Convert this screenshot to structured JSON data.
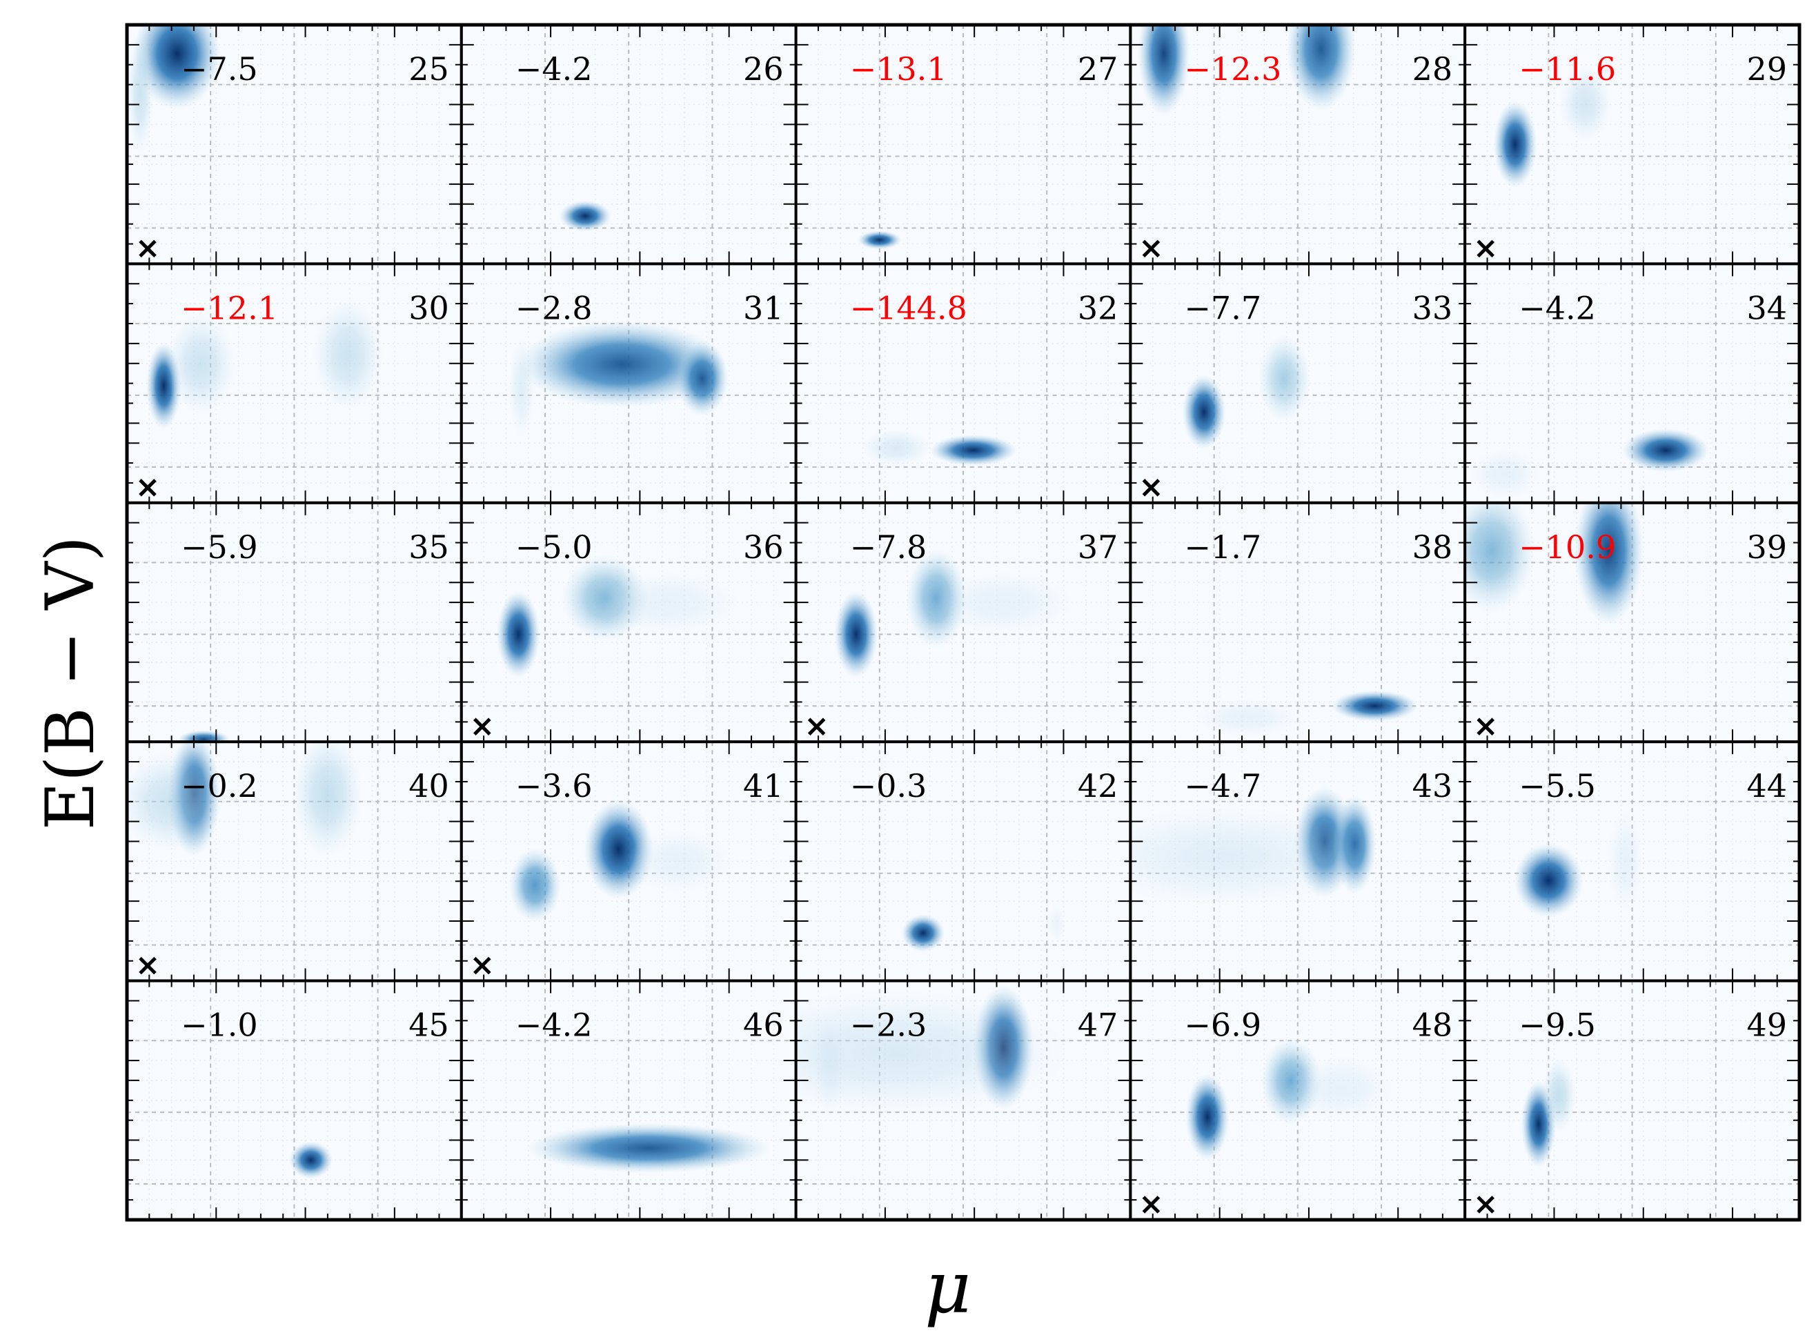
{
  "chart_data": {
    "type": "heatmap",
    "title": "",
    "xlabel": "μ",
    "ylabel": "E(B − V)",
    "grid": true,
    "layout_grid": {
      "rows": 5,
      "cols": 5
    },
    "colormap": "Blues",
    "highlight_color": "#ff0000",
    "text_color": "#000000",
    "panels": [
      {
        "id": "25",
        "value": "−7.5",
        "highlight": false,
        "marker": true,
        "blobs": [
          {
            "x": 0.15,
            "y": 0.88,
            "sx": 0.05,
            "sy": 0.09,
            "w": 1.0
          },
          {
            "x": 0.04,
            "y": 0.72,
            "sx": 0.015,
            "sy": 0.1,
            "w": 0.3
          }
        ]
      },
      {
        "id": "26",
        "value": "−4.2",
        "highlight": false,
        "marker": false,
        "blobs": [
          {
            "x": 0.37,
            "y": 0.2,
            "sx": 0.03,
            "sy": 0.025,
            "w": 1.0
          }
        ]
      },
      {
        "id": "27",
        "value": "−13.1",
        "highlight": true,
        "marker": false,
        "blobs": [
          {
            "x": 0.25,
            "y": 0.1,
            "sx": 0.025,
            "sy": 0.015,
            "w": 1.0
          }
        ]
      },
      {
        "id": "28",
        "value": "−12.3",
        "highlight": true,
        "marker": true,
        "blobs": [
          {
            "x": 0.1,
            "y": 0.88,
            "sx": 0.03,
            "sy": 0.1,
            "w": 0.95
          },
          {
            "x": 0.57,
            "y": 0.9,
            "sx": 0.04,
            "sy": 0.1,
            "w": 0.9
          }
        ]
      },
      {
        "id": "29",
        "value": "−11.6",
        "highlight": true,
        "marker": true,
        "blobs": [
          {
            "x": 0.15,
            "y": 0.5,
            "sx": 0.025,
            "sy": 0.07,
            "w": 1.0
          },
          {
            "x": 0.36,
            "y": 0.67,
            "sx": 0.03,
            "sy": 0.06,
            "w": 0.25
          }
        ]
      },
      {
        "id": "30",
        "value": "−12.1",
        "highlight": true,
        "marker": true,
        "blobs": [
          {
            "x": 0.11,
            "y": 0.49,
            "sx": 0.02,
            "sy": 0.07,
            "w": 1.0
          },
          {
            "x": 0.22,
            "y": 0.58,
            "sx": 0.04,
            "sy": 0.08,
            "w": 0.3
          },
          {
            "x": 0.66,
            "y": 0.62,
            "sx": 0.04,
            "sy": 0.09,
            "w": 0.28
          }
        ]
      },
      {
        "id": "31",
        "value": "−2.8",
        "highlight": false,
        "marker": false,
        "blobs": [
          {
            "x": 0.48,
            "y": 0.58,
            "sx": 0.12,
            "sy": 0.07,
            "w": 0.9
          },
          {
            "x": 0.72,
            "y": 0.52,
            "sx": 0.03,
            "sy": 0.06,
            "w": 0.9
          },
          {
            "x": 0.18,
            "y": 0.48,
            "sx": 0.015,
            "sy": 0.08,
            "w": 0.15
          }
        ]
      },
      {
        "id": "32",
        "value": "−144.8",
        "highlight": true,
        "marker": false,
        "blobs": [
          {
            "x": 0.53,
            "y": 0.22,
            "sx": 0.05,
            "sy": 0.025,
            "w": 1.0
          },
          {
            "x": 0.3,
            "y": 0.23,
            "sx": 0.04,
            "sy": 0.03,
            "w": 0.2
          }
        ]
      },
      {
        "id": "33",
        "value": "−7.7",
        "highlight": false,
        "marker": true,
        "blobs": [
          {
            "x": 0.22,
            "y": 0.38,
            "sx": 0.025,
            "sy": 0.06,
            "w": 1.0
          },
          {
            "x": 0.46,
            "y": 0.52,
            "sx": 0.03,
            "sy": 0.07,
            "w": 0.45
          }
        ]
      },
      {
        "id": "34",
        "value": "−4.2",
        "highlight": false,
        "marker": false,
        "blobs": [
          {
            "x": 0.6,
            "y": 0.22,
            "sx": 0.05,
            "sy": 0.035,
            "w": 1.0
          },
          {
            "x": 0.12,
            "y": 0.12,
            "sx": 0.04,
            "sy": 0.04,
            "w": 0.08
          }
        ]
      },
      {
        "id": "35",
        "value": "−5.9",
        "highlight": false,
        "marker": false,
        "blobs": [
          {
            "x": 0.23,
            "y": 0.01,
            "sx": 0.03,
            "sy": 0.015,
            "w": 0.95
          }
        ]
      },
      {
        "id": "36",
        "value": "−5.0",
        "highlight": false,
        "marker": true,
        "blobs": [
          {
            "x": 0.17,
            "y": 0.45,
            "sx": 0.025,
            "sy": 0.07,
            "w": 1.0
          },
          {
            "x": 0.43,
            "y": 0.6,
            "sx": 0.05,
            "sy": 0.07,
            "w": 0.55
          },
          {
            "x": 0.62,
            "y": 0.58,
            "sx": 0.08,
            "sy": 0.05,
            "w": 0.1
          }
        ]
      },
      {
        "id": "37",
        "value": "−7.8",
        "highlight": false,
        "marker": true,
        "blobs": [
          {
            "x": 0.18,
            "y": 0.45,
            "sx": 0.025,
            "sy": 0.07,
            "w": 1.0
          },
          {
            "x": 0.42,
            "y": 0.6,
            "sx": 0.035,
            "sy": 0.08,
            "w": 0.6
          },
          {
            "x": 0.62,
            "y": 0.58,
            "sx": 0.08,
            "sy": 0.05,
            "w": 0.1
          }
        ]
      },
      {
        "id": "38",
        "value": "−1.7",
        "highlight": false,
        "marker": false,
        "blobs": [
          {
            "x": 0.73,
            "y": 0.15,
            "sx": 0.05,
            "sy": 0.025,
            "w": 1.0
          },
          {
            "x": 0.35,
            "y": 0.1,
            "sx": 0.06,
            "sy": 0.03,
            "w": 0.12
          }
        ]
      },
      {
        "id": "39",
        "value": "−10.9",
        "highlight": true,
        "marker": true,
        "blobs": [
          {
            "x": 0.43,
            "y": 0.8,
            "sx": 0.04,
            "sy": 0.12,
            "w": 0.95
          },
          {
            "x": 0.08,
            "y": 0.8,
            "sx": 0.05,
            "sy": 0.1,
            "w": 0.55
          }
        ]
      },
      {
        "id": "40",
        "value": "−0.2",
        "highlight": false,
        "marker": true,
        "blobs": [
          {
            "x": 0.2,
            "y": 0.78,
            "sx": 0.03,
            "sy": 0.1,
            "w": 0.95
          },
          {
            "x": 0.13,
            "y": 0.75,
            "sx": 0.06,
            "sy": 0.08,
            "w": 0.3
          },
          {
            "x": 0.6,
            "y": 0.78,
            "sx": 0.04,
            "sy": 0.1,
            "w": 0.35
          }
        ]
      },
      {
        "id": "41",
        "value": "−3.6",
        "highlight": false,
        "marker": true,
        "blobs": [
          {
            "x": 0.47,
            "y": 0.55,
            "sx": 0.04,
            "sy": 0.08,
            "w": 1.0
          },
          {
            "x": 0.22,
            "y": 0.4,
            "sx": 0.03,
            "sy": 0.06,
            "w": 0.7
          },
          {
            "x": 0.65,
            "y": 0.5,
            "sx": 0.06,
            "sy": 0.05,
            "w": 0.08
          }
        ]
      },
      {
        "id": "42",
        "value": "−0.3",
        "highlight": false,
        "marker": false,
        "blobs": [
          {
            "x": 0.38,
            "y": 0.2,
            "sx": 0.025,
            "sy": 0.03,
            "w": 1.0
          },
          {
            "x": 0.78,
            "y": 0.24,
            "sx": 0.01,
            "sy": 0.03,
            "w": 0.06
          }
        ]
      },
      {
        "id": "43",
        "value": "−4.7",
        "highlight": false,
        "marker": false,
        "blobs": [
          {
            "x": 0.58,
            "y": 0.58,
            "sx": 0.035,
            "sy": 0.09,
            "w": 0.9
          },
          {
            "x": 0.67,
            "y": 0.57,
            "sx": 0.025,
            "sy": 0.08,
            "w": 0.85
          },
          {
            "x": 0.28,
            "y": 0.52,
            "sx": 0.16,
            "sy": 0.08,
            "w": 0.15
          }
        ]
      },
      {
        "id": "44",
        "value": "−5.5",
        "highlight": false,
        "marker": false,
        "blobs": [
          {
            "x": 0.25,
            "y": 0.42,
            "sx": 0.04,
            "sy": 0.06,
            "w": 1.0
          },
          {
            "x": 0.48,
            "y": 0.5,
            "sx": 0.02,
            "sy": 0.08,
            "w": 0.1
          }
        ]
      },
      {
        "id": "45",
        "value": "−1.0",
        "highlight": false,
        "marker": false,
        "blobs": [
          {
            "x": 0.55,
            "y": 0.25,
            "sx": 0.025,
            "sy": 0.03,
            "w": 1.0
          }
        ]
      },
      {
        "id": "46",
        "value": "−4.2",
        "highlight": false,
        "marker": false,
        "blobs": [
          {
            "x": 0.56,
            "y": 0.3,
            "sx": 0.14,
            "sy": 0.04,
            "w": 0.9
          }
        ]
      },
      {
        "id": "47",
        "value": "−2.3",
        "highlight": false,
        "marker": false,
        "blobs": [
          {
            "x": 0.62,
            "y": 0.72,
            "sx": 0.035,
            "sy": 0.1,
            "w": 1.0
          },
          {
            "x": 0.3,
            "y": 0.7,
            "sx": 0.2,
            "sy": 0.1,
            "w": 0.18
          },
          {
            "x": 0.1,
            "y": 0.65,
            "sx": 0.02,
            "sy": 0.08,
            "w": 0.12
          }
        ]
      },
      {
        "id": "48",
        "value": "−6.9",
        "highlight": false,
        "marker": true,
        "blobs": [
          {
            "x": 0.23,
            "y": 0.43,
            "sx": 0.025,
            "sy": 0.07,
            "w": 1.0
          },
          {
            "x": 0.48,
            "y": 0.58,
            "sx": 0.035,
            "sy": 0.07,
            "w": 0.6
          },
          {
            "x": 0.63,
            "y": 0.55,
            "sx": 0.06,
            "sy": 0.05,
            "w": 0.08
          }
        ]
      },
      {
        "id": "49",
        "value": "−9.5",
        "highlight": false,
        "marker": true,
        "blobs": [
          {
            "x": 0.22,
            "y": 0.4,
            "sx": 0.02,
            "sy": 0.07,
            "w": 1.0
          },
          {
            "x": 0.28,
            "y": 0.52,
            "sx": 0.02,
            "sy": 0.06,
            "w": 0.35
          }
        ]
      }
    ]
  }
}
